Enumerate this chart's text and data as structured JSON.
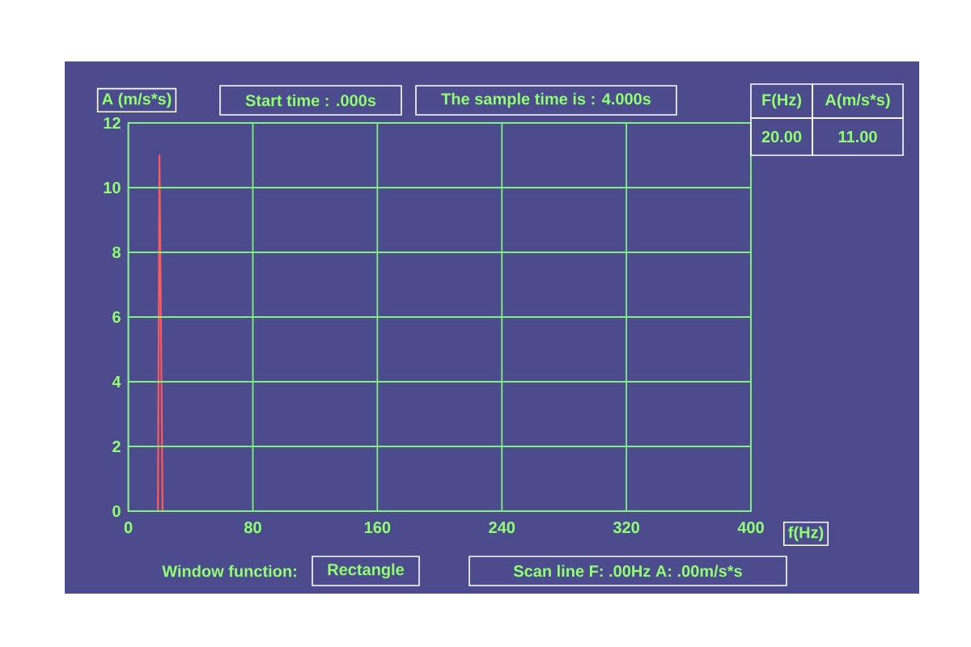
{
  "chart_data": {
    "type": "line",
    "xlabel": "f(Hz)",
    "ylabel": "A (m/s*s)",
    "x": [
      0,
      19,
      20,
      21,
      22,
      400
    ],
    "values": [
      0,
      0,
      11,
      5.5,
      0,
      0
    ],
    "color": "#ff5a5a",
    "xlim": [
      0,
      400
    ],
    "xticks": [
      0,
      80,
      160,
      240,
      320,
      400
    ],
    "ylim": [
      0,
      12
    ],
    "yticks": [
      0,
      2,
      4,
      6,
      8,
      10,
      12
    ],
    "grid": true,
    "annotations": [
      "Start time : .000s",
      "The sample time is : 4.000s",
      "F(Hz)",
      "A(m/s*s)",
      "20.00",
      "11.00",
      "Window function:",
      "Rectangle",
      "Scan line F: .00Hz A: .00m/s*s"
    ]
  }
}
